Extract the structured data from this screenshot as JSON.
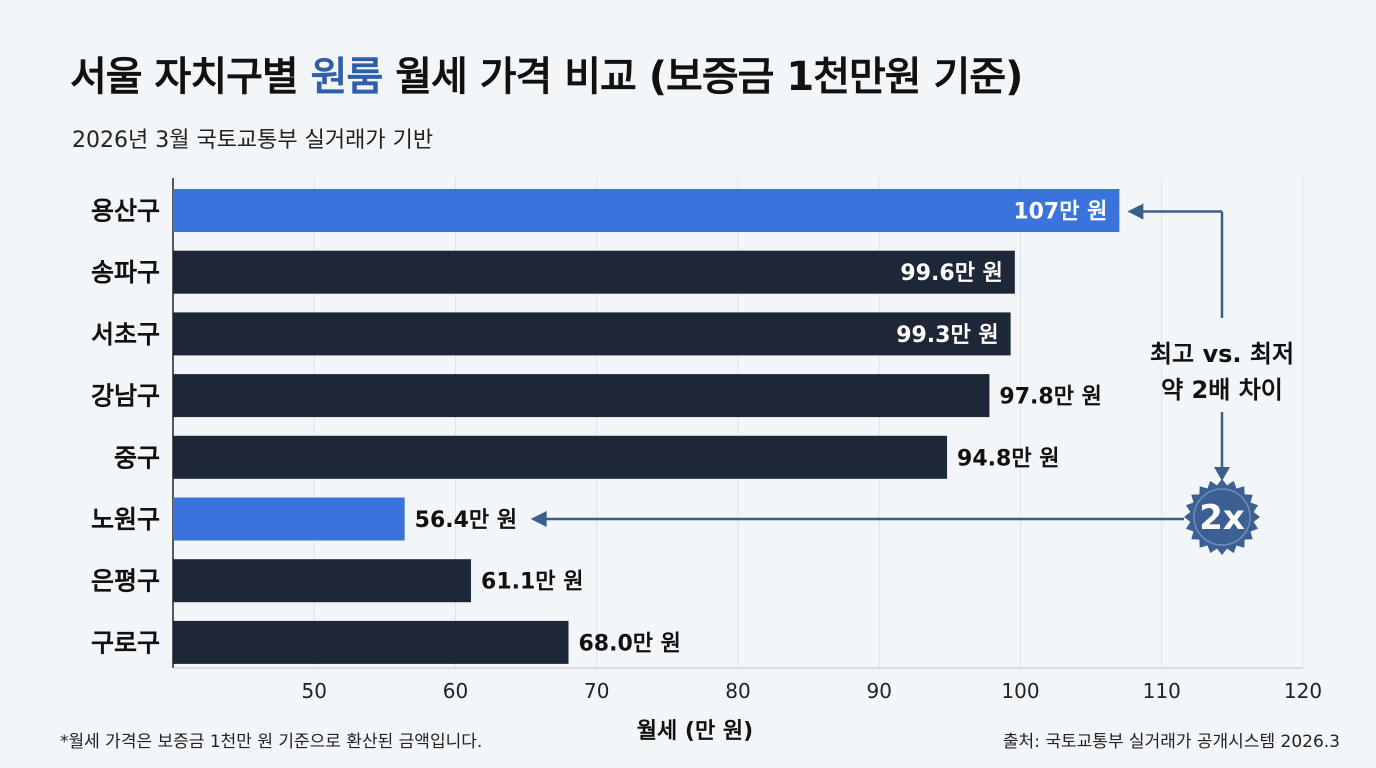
{
  "header": {
    "title_pre": "서울 자치구별 ",
    "title_accent": "원룸",
    "title_post": " 월세 가격 비교 (보증금 1천만원 기준)",
    "subtitle": "2026년 3월 국토교통부 실거래가 기반"
  },
  "chart_data": {
    "type": "bar",
    "orientation": "horizontal",
    "categories": [
      "용산구",
      "송파구",
      "서초구",
      "강남구",
      "중구",
      "노원구",
      "은평구",
      "구로구"
    ],
    "values": [
      107,
      99.6,
      99.3,
      97.8,
      94.8,
      56.4,
      61.1,
      68.0
    ],
    "value_labels": [
      "107만 원",
      "99.6만 원",
      "99.3만 원",
      "97.8만 원",
      "94.8만 원",
      "56.4만 원",
      "61.1만 원",
      "68.0만 원"
    ],
    "highlighted": [
      "용산구",
      "노원구"
    ],
    "xlabel": "월세 (만 원)",
    "xlim": [
      40,
      120
    ],
    "xticks": [
      50,
      60,
      70,
      80,
      90,
      100,
      110,
      120
    ],
    "grid": true,
    "colors": {
      "highlight": "#3a73db",
      "default": "#1e2738",
      "arrow": "#3a5f8c",
      "badge": "#3d6094"
    },
    "annotation": {
      "line1": "최고 vs. 최저",
      "line2": "약 2배 차이",
      "badge": "2x",
      "from": "용산구",
      "to": "노원구"
    }
  },
  "footer": {
    "note": "*월세 가격은 보증금 1천만 원 기준으로 환산된 금액입니다.",
    "source": "출처: 국토교통부 실거래가 공개시스템 2026.3"
  }
}
